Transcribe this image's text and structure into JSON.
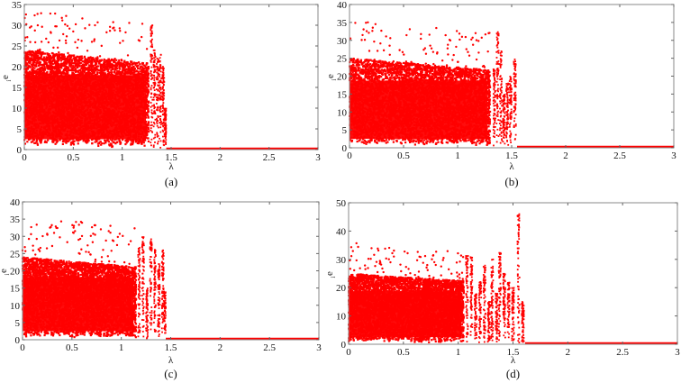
{
  "figure": {
    "panels": [
      {
        "id": "a",
        "caption": "(a)"
      },
      {
        "id": "b",
        "caption": "(b)"
      },
      {
        "id": "c",
        "caption": "(c)"
      },
      {
        "id": "d",
        "caption": "(d)"
      }
    ]
  },
  "chart_data": [
    {
      "type": "scatter",
      "panel": "(a)",
      "title": "",
      "xlabel": "λ",
      "ylabel": "e_i",
      "xlim": [
        0,
        3
      ],
      "ylim": [
        0,
        35
      ],
      "xticks": [
        0,
        0.5,
        1,
        1.5,
        2,
        2.5,
        3
      ],
      "yticks": [
        0,
        5,
        10,
        15,
        20,
        25,
        30,
        35
      ],
      "color": "#ff0000",
      "description": "Dense red scatter of e_i values between ~1 and ~25 (outliers up to ~34) for λ from 0 to ~1.27, sparse columns between 1.27 and 1.45, then e_i = 0 for λ > ~1.45",
      "dense_region": {
        "x_start": 0,
        "x_end": 1.27,
        "y_low": 1.5,
        "y_high": 24,
        "max_outliers": 34
      },
      "sparse_columns": [
        {
          "x": 1.3,
          "y_high": 30
        },
        {
          "x": 1.33,
          "y_high": 24
        },
        {
          "x": 1.36,
          "y_high": 22
        },
        {
          "x": 1.39,
          "y_high": 23
        },
        {
          "x": 1.42,
          "y_high": 20
        },
        {
          "x": 1.44,
          "y_high": 10
        }
      ],
      "cutoff_lambda": 1.45,
      "zero_line": [
        1.45,
        3
      ]
    },
    {
      "type": "scatter",
      "panel": "(b)",
      "title": "",
      "xlabel": "λ",
      "ylabel": "e_i",
      "xlim": [
        0,
        3
      ],
      "ylim": [
        0,
        40
      ],
      "xticks": [
        0,
        0.5,
        1,
        1.5,
        2,
        2.5,
        3
      ],
      "yticks": [
        0,
        5,
        10,
        15,
        20,
        25,
        30,
        35,
        40
      ],
      "color": "#ff0000",
      "description": "Dense scatter for λ 0–1.3, sparse spikes near 1.37 (up to ~33), 1.4 (~27), 1.53 (~25), then zero after ~1.55",
      "dense_region": {
        "x_start": 0,
        "x_end": 1.3,
        "y_low": 1.5,
        "y_high": 25,
        "max_outliers": 36
      },
      "sparse_columns": [
        {
          "x": 1.34,
          "y_high": 22
        },
        {
          "x": 1.37,
          "y_high": 33
        },
        {
          "x": 1.4,
          "y_high": 27
        },
        {
          "x": 1.43,
          "y_high": 15
        },
        {
          "x": 1.46,
          "y_high": 18
        },
        {
          "x": 1.49,
          "y_high": 20
        },
        {
          "x": 1.53,
          "y_high": 25
        }
      ],
      "cutoff_lambda": 1.55,
      "zero_line": [
        1.55,
        3
      ]
    },
    {
      "type": "scatter",
      "panel": "(c)",
      "title": "",
      "xlabel": "λ",
      "ylabel": "e_i",
      "xlim": [
        0,
        3
      ],
      "ylim": [
        0,
        40
      ],
      "xticks": [
        0,
        0.5,
        1,
        1.5,
        2,
        2.5,
        3
      ],
      "yticks": [
        0,
        5,
        10,
        15,
        20,
        25,
        30,
        35,
        40
      ],
      "color": "#ff0000",
      "description": "Dense scatter for λ 0–1.15, sparser to ~1.38, spikes near 1.42–1.44 up to ~26, then zero after ~1.45",
      "dense_region": {
        "x_start": 0,
        "x_end": 1.15,
        "y_low": 1.5,
        "y_high": 24,
        "max_outliers": 36
      },
      "sparse_columns": [
        {
          "x": 1.18,
          "y_high": 27
        },
        {
          "x": 1.22,
          "y_high": 30
        },
        {
          "x": 1.26,
          "y_high": 15
        },
        {
          "x": 1.3,
          "y_high": 30
        },
        {
          "x": 1.34,
          "y_high": 27
        },
        {
          "x": 1.38,
          "y_high": 22
        },
        {
          "x": 1.42,
          "y_high": 26
        },
        {
          "x": 1.44,
          "y_high": 14
        }
      ],
      "cutoff_lambda": 1.45,
      "zero_line": [
        1.45,
        3
      ]
    },
    {
      "type": "scatter",
      "panel": "(d)",
      "title": "",
      "xlabel": "λ",
      "ylabel": "e_i",
      "xlim": [
        0,
        3
      ],
      "ylim": [
        0,
        50
      ],
      "xticks": [
        0,
        0.5,
        1,
        1.5,
        2,
        2.5,
        3
      ],
      "yticks": [
        0,
        10,
        20,
        30,
        40,
        50
      ],
      "color": "#ff0000",
      "description": "Dense scatter for λ 0–1.05, many separated columns 1.05–1.6 with peak near λ≈1.55 reaching ~46, then zero after ~1.6",
      "dense_region": {
        "x_start": 0,
        "x_end": 1.05,
        "y_low": 1.5,
        "y_high": 25,
        "max_outliers": 36
      },
      "sparse_columns": [
        {
          "x": 1.08,
          "y_high": 32
        },
        {
          "x": 1.12,
          "y_high": 31
        },
        {
          "x": 1.16,
          "y_high": 18
        },
        {
          "x": 1.2,
          "y_high": 22
        },
        {
          "x": 1.24,
          "y_high": 28
        },
        {
          "x": 1.28,
          "y_high": 15
        },
        {
          "x": 1.31,
          "y_high": 30
        },
        {
          "x": 1.35,
          "y_high": 18
        },
        {
          "x": 1.38,
          "y_high": 33
        },
        {
          "x": 1.42,
          "y_high": 25
        },
        {
          "x": 1.46,
          "y_high": 22
        },
        {
          "x": 1.5,
          "y_high": 20
        },
        {
          "x": 1.55,
          "y_high": 46
        },
        {
          "x": 1.59,
          "y_high": 15
        }
      ],
      "cutoff_lambda": 1.61,
      "zero_line": [
        1.61,
        3
      ]
    }
  ]
}
